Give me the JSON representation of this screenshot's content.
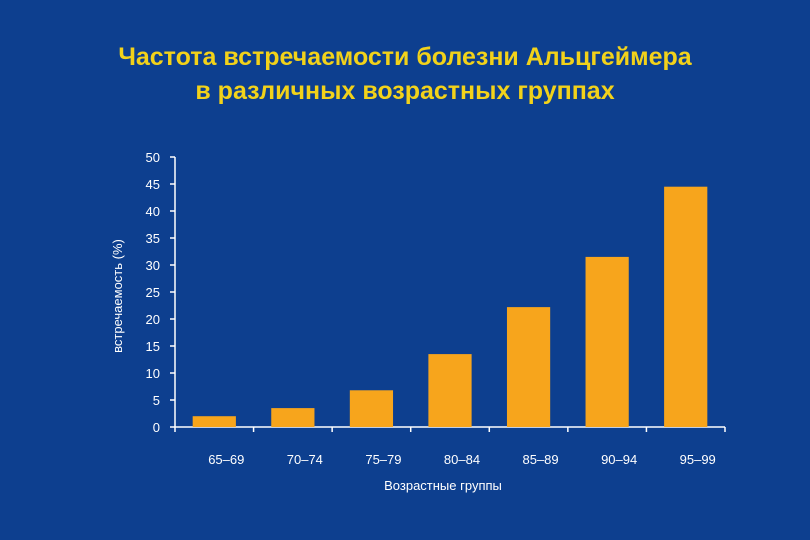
{
  "chart_data": {
    "type": "bar",
    "title_lines": [
      "Частота встречаемости болезни Альцгеймера",
      "в различных возрастных группах"
    ],
    "categories": [
      "65–69",
      "70–74",
      "75–79",
      "80–84",
      "85–89",
      "90–94",
      "95–99"
    ],
    "values": [
      2,
      3.5,
      6.8,
      13.5,
      22.2,
      31.5,
      44.5
    ],
    "xlabel": "Возрастные группы",
    "ylabel": "встречаемость (%)",
    "ylim": [
      0,
      50
    ],
    "yticks": [
      0,
      5,
      10,
      15,
      20,
      25,
      30,
      35,
      40,
      45,
      50
    ],
    "grid": false,
    "bar_color": "#f7a51c",
    "background_color": "#0d3f8f",
    "title_color": "#f2d21a"
  }
}
